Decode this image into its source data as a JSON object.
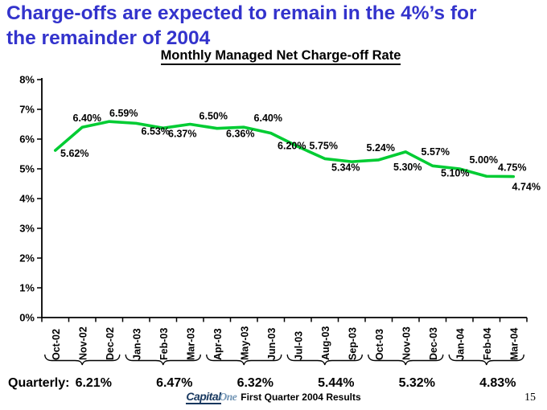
{
  "slide": {
    "title_line1": "Charge-offs are expected to remain in the 4%’s for",
    "title_line2": "the remainder of 2004",
    "title_color": "#3333CC",
    "page_number": "15"
  },
  "footer": {
    "logo_capital": "Capital",
    "logo_one": "One",
    "logo_capital_color": "#17375E",
    "logo_one_color": "#7295B5",
    "text": "First Quarter 2004 Results"
  },
  "chart_data": {
    "type": "line",
    "title": "Monthly Managed Net Charge-off Rate",
    "categories": [
      "Oct-02",
      "Nov-02",
      "Dec-02",
      "Jan-03",
      "Feb-03",
      "Mar-03",
      "Apr-03",
      "May-03",
      "Jun-03",
      "Jul-03",
      "Aug-03",
      "Sep-03",
      "Oct-03",
      "Nov-03",
      "Dec-03",
      "Jan-04",
      "Feb-04",
      "Mar-04"
    ],
    "values": [
      5.62,
      6.4,
      6.59,
      6.53,
      6.37,
      6.5,
      6.36,
      6.4,
      6.2,
      5.75,
      5.34,
      5.24,
      5.3,
      5.57,
      5.1,
      5.0,
      4.75,
      4.74
    ],
    "point_labels": [
      "5.62%",
      "6.40%",
      "6.59%",
      "6.53%",
      "6.37%",
      "6.50%",
      "6.36%",
      "6.40%",
      "6.20%",
      "5.75%",
      "5.34%",
      "5.24%",
      "5.30%",
      "5.57%",
      "5.10%",
      "5.00%",
      "4.75%",
      "4.74%"
    ],
    "ylim": [
      0,
      8
    ],
    "ytick_labels": [
      "0%",
      "1%",
      "2%",
      "3%",
      "4%",
      "5%",
      "6%",
      "7%",
      "8%"
    ],
    "grid": false,
    "legend": "none",
    "line_color": "#00CC33",
    "axis_color": "#000000",
    "quarterly_label": "Quarterly:",
    "quarterly_values": [
      "6.21%",
      "6.47%",
      "6.32%",
      "5.44%",
      "5.32%",
      "4.83%"
    ]
  }
}
